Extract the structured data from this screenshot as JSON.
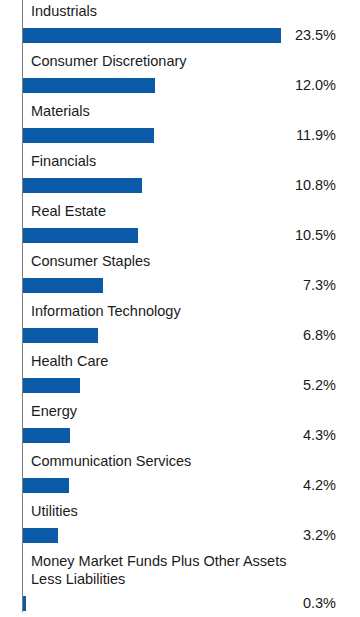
{
  "chart_data": {
    "type": "bar",
    "orientation": "horizontal",
    "categories": [
      "Industrials",
      "Consumer Discretionary",
      "Materials",
      "Financials",
      "Real Estate",
      "Consumer Staples",
      "Information Technology",
      "Health Care",
      "Energy",
      "Communication Services",
      "Utilities",
      "Money Market Funds Plus Other Assets Less Liabilities"
    ],
    "values": [
      23.5,
      12.0,
      11.9,
      10.8,
      10.5,
      7.3,
      6.8,
      5.2,
      4.3,
      4.2,
      3.2,
      0.3
    ],
    "value_labels": [
      "23.5%",
      "12.0%",
      "11.9%",
      "10.8%",
      "10.5%",
      "7.3%",
      "6.8%",
      "5.2%",
      "4.3%",
      "4.2%",
      "3.2%",
      "0.3%"
    ],
    "color": "#0b5aa8",
    "xlim": [
      0,
      23.5
    ],
    "data_labels": true,
    "tick_labels": false,
    "grid": false
  }
}
